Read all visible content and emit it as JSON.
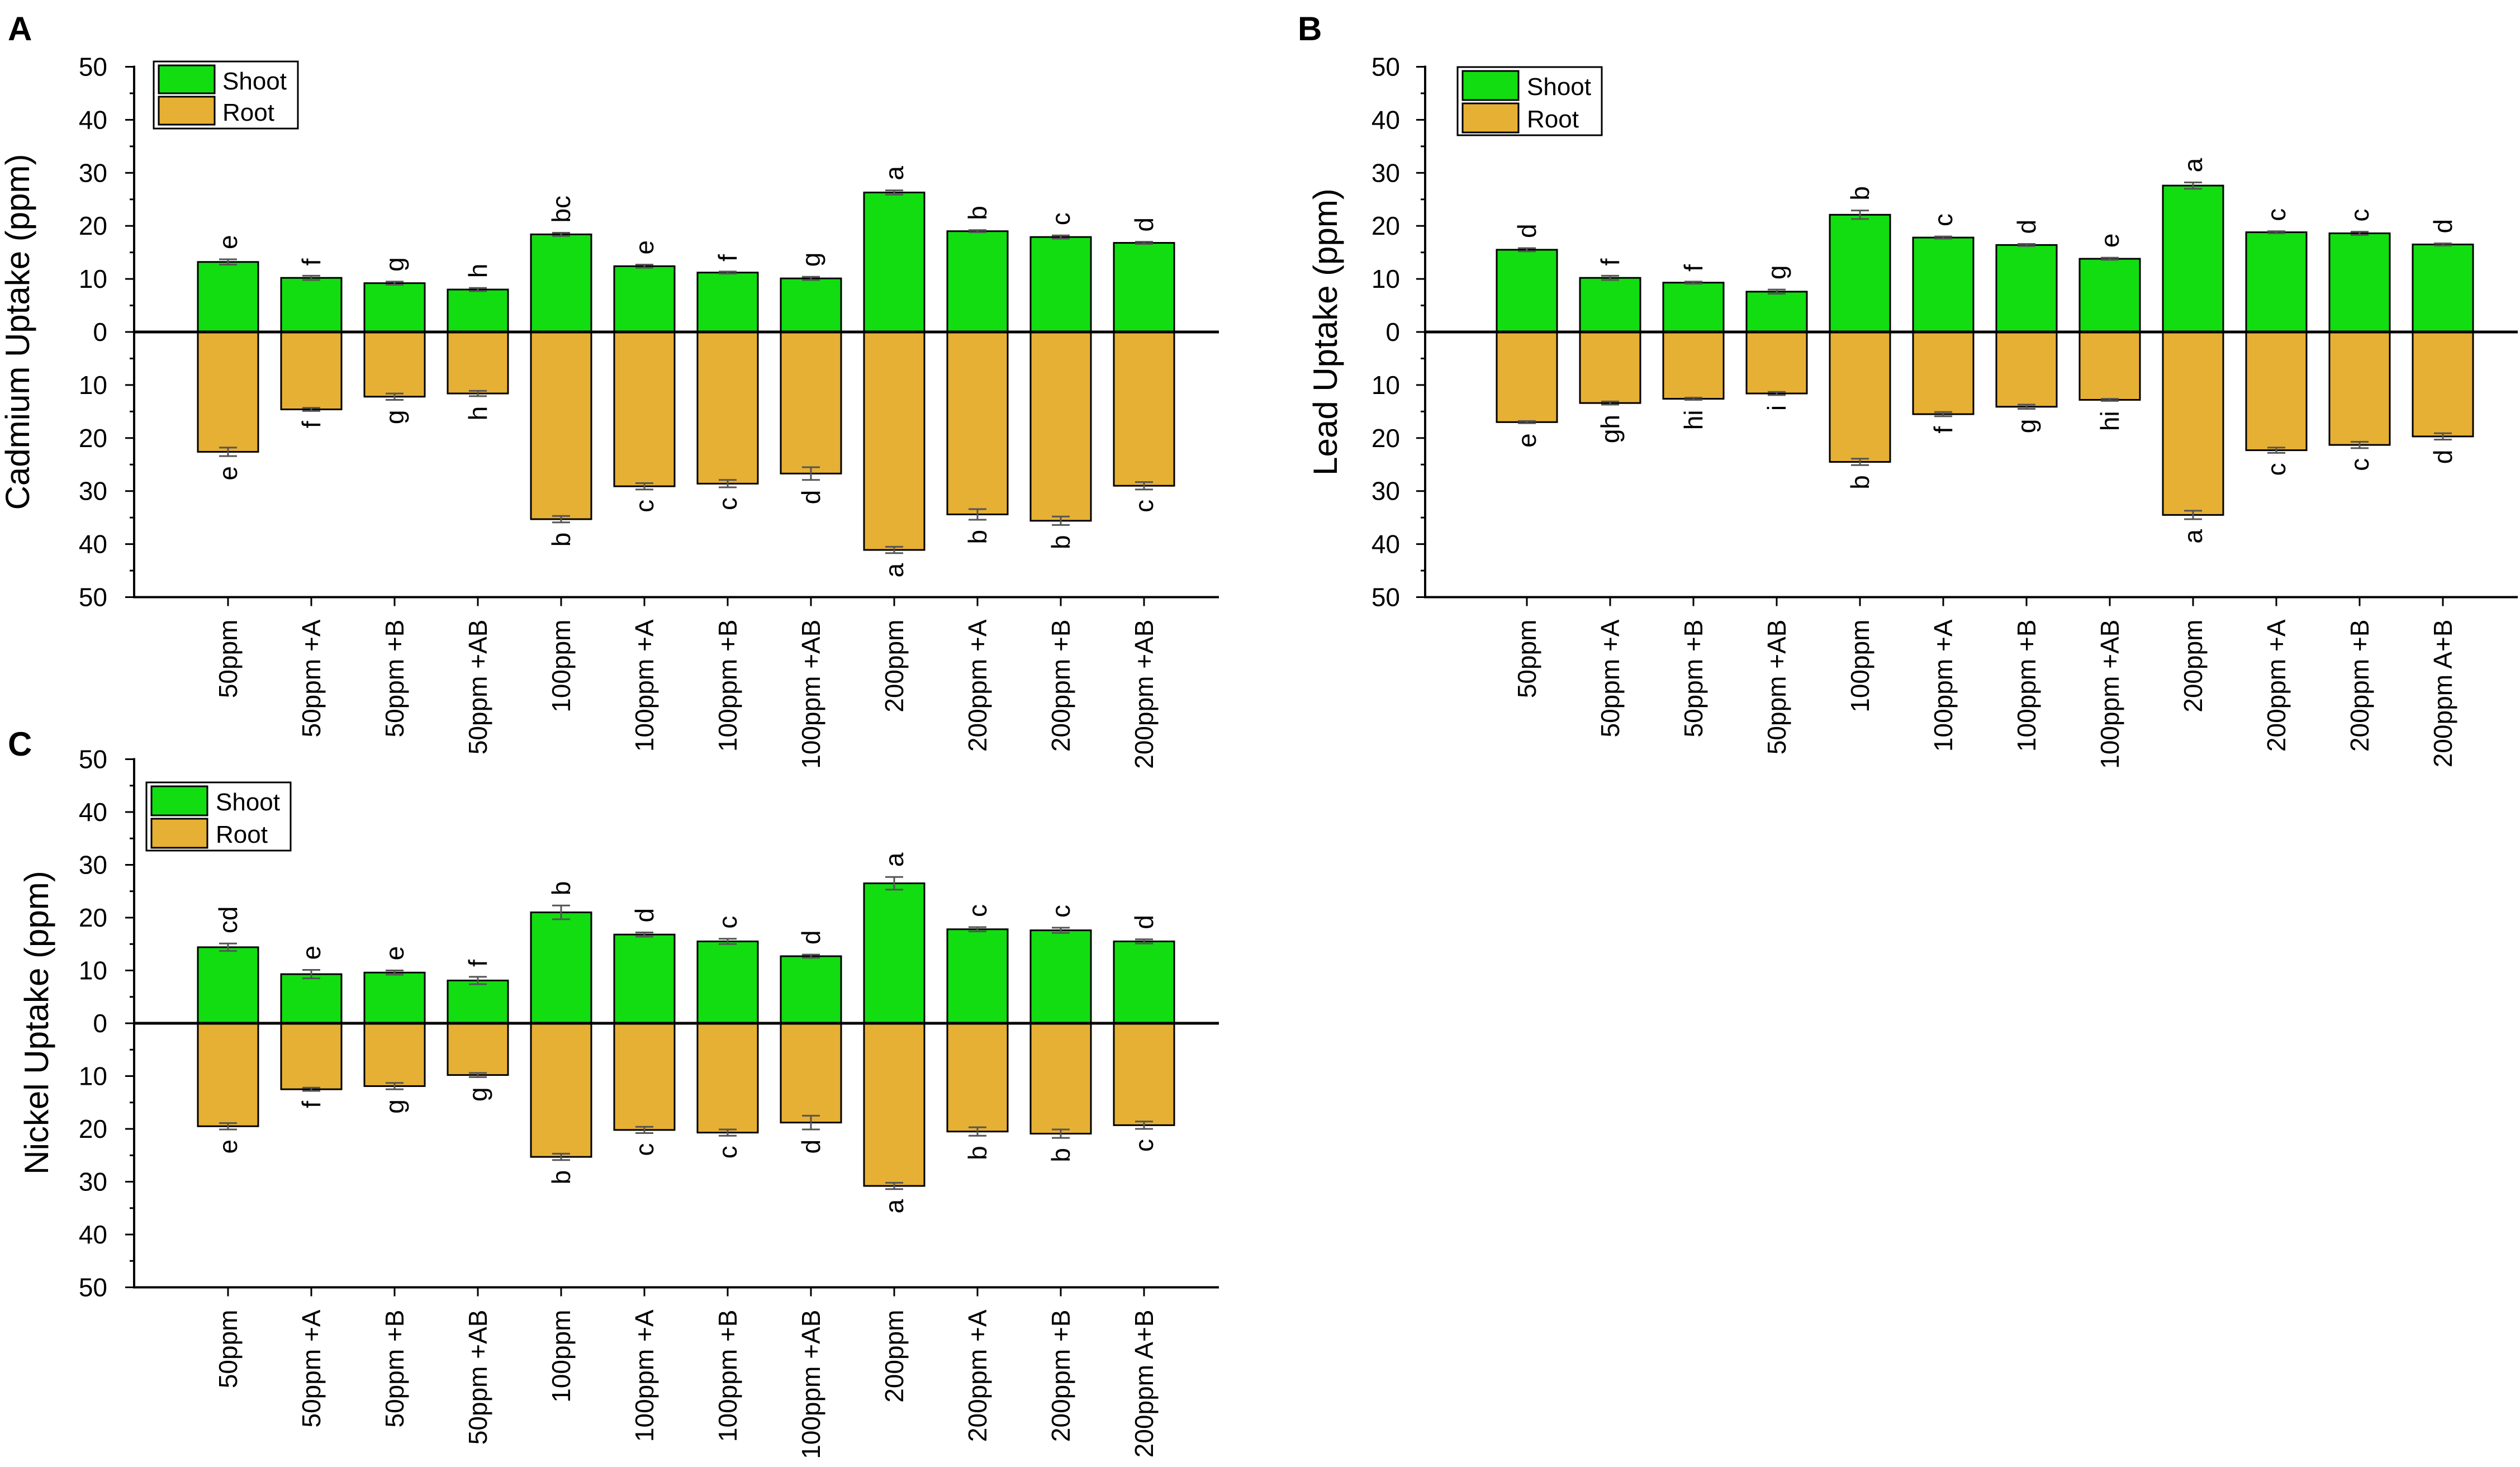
{
  "colors": {
    "shoot": "#11dd11",
    "root": "#e6b034",
    "axis": "#000000",
    "error": "#555555"
  },
  "chart_data": [
    {
      "panel": "A",
      "type": "bar",
      "title": "",
      "ylabel": "Cadmium Uptake (ppm)",
      "xlabel": "",
      "ylim": [
        -50,
        50
      ],
      "ytick_values": [
        50,
        40,
        30,
        20,
        10,
        0,
        -10,
        -20,
        -30,
        -40,
        -50
      ],
      "ytick_labels": [
        "50",
        "40",
        "30",
        "20",
        "10",
        "0",
        "10",
        "20",
        "30",
        "40",
        "50"
      ],
      "legend": [
        "Shoot",
        "Root"
      ],
      "legend_placement": "top-left",
      "categories": [
        "50ppm",
        "50ppm +A",
        "50ppm +B",
        "50ppm +AB",
        "100ppm",
        "100ppm +A",
        "100ppm +B",
        "100ppm +AB",
        "200ppm",
        "200ppm +A",
        "200ppm +B",
        "200ppm +AB"
      ],
      "series": [
        {
          "name": "Shoot",
          "values": [
            13.2,
            10.2,
            9.2,
            8.0,
            18.4,
            12.4,
            11.2,
            10.1,
            26.3,
            19.0,
            17.9,
            16.8
          ],
          "errors": [
            0.5,
            0.4,
            0.3,
            0.3,
            0.3,
            0.3,
            0.2,
            0.3,
            0.4,
            0.2,
            0.3,
            0.2
          ],
          "letters": [
            "e",
            "f",
            "g",
            "h",
            "bc",
            "e",
            "f",
            "g",
            "a",
            "b",
            "c",
            "d"
          ]
        },
        {
          "name": "Root",
          "values": [
            -22.6,
            -14.6,
            -12.2,
            -11.6,
            -35.3,
            -29.1,
            -28.6,
            -26.7,
            -41.1,
            -34.4,
            -35.6,
            -29.0
          ],
          "errors": [
            0.8,
            0.3,
            0.6,
            0.5,
            0.6,
            0.6,
            0.7,
            1.2,
            0.6,
            1.0,
            0.8,
            0.7
          ],
          "letters": [
            "e",
            "f",
            "g",
            "h",
            "b",
            "c",
            "c",
            "d",
            "a",
            "b",
            "b",
            "c"
          ]
        }
      ]
    },
    {
      "panel": "B",
      "type": "bar",
      "title": "",
      "ylabel": "Lead Uptake (ppm)",
      "xlabel": "",
      "ylim": [
        -50,
        50
      ],
      "ytick_values": [
        50,
        40,
        30,
        20,
        10,
        0,
        -10,
        -20,
        -30,
        -40,
        -50
      ],
      "ytick_labels": [
        "50",
        "40",
        "30",
        "20",
        "10",
        "0",
        "10",
        "20",
        "30",
        "40",
        "50"
      ],
      "legend": [
        "Shoot",
        "Root"
      ],
      "legend_placement": "top-left",
      "categories": [
        "50ppm",
        "50ppm +A",
        "50ppm +B",
        "50ppm +AB",
        "100ppm",
        "100ppm +A",
        "100ppm +B",
        "100ppm +AB",
        "200ppm",
        "200ppm +A",
        "200ppm +B",
        "200ppm A+B"
      ],
      "series": [
        {
          "name": "Shoot",
          "values": [
            15.5,
            10.2,
            9.3,
            7.6,
            22.1,
            17.8,
            16.4,
            13.8,
            27.6,
            18.8,
            18.6,
            16.5
          ],
          "errors": [
            0.3,
            0.4,
            0.2,
            0.4,
            0.8,
            0.2,
            0.2,
            0.2,
            0.6,
            0.2,
            0.3,
            0.2
          ],
          "letters": [
            "d",
            "f",
            "f",
            "g",
            "b",
            "c",
            "d",
            "e",
            "a",
            "c",
            "c",
            "d"
          ]
        },
        {
          "name": "Root",
          "values": [
            -17.0,
            -13.4,
            -12.6,
            -11.6,
            -24.5,
            -15.5,
            -14.1,
            -12.8,
            -34.5,
            -22.3,
            -21.3,
            -19.7
          ],
          "errors": [
            0.2,
            0.3,
            0.2,
            0.3,
            0.6,
            0.4,
            0.4,
            0.2,
            0.8,
            0.5,
            0.6,
            0.6
          ],
          "letters": [
            "e",
            "gh",
            "hi",
            "i",
            "b",
            "f",
            "g",
            "hi",
            "a",
            "c",
            "c",
            "d"
          ]
        }
      ]
    },
    {
      "panel": "C",
      "type": "bar",
      "title": "",
      "ylabel": "Nickel Uptake (ppm)",
      "xlabel": "",
      "ylim": [
        -50,
        50
      ],
      "ytick_values": [
        50,
        40,
        30,
        20,
        10,
        0,
        -10,
        -20,
        -30,
        -40,
        -50
      ],
      "ytick_labels": [
        "50",
        "40",
        "30",
        "20",
        "10",
        "0",
        "10",
        "20",
        "30",
        "40",
        "50"
      ],
      "legend": [
        "Shoot",
        "Root"
      ],
      "legend_placement": "top-left",
      "categories": [
        "50ppm",
        "50ppm +A",
        "50ppm +B",
        "50ppm +AB",
        "100ppm",
        "100ppm +A",
        "100ppm +B",
        "100ppm +AB",
        "200ppm",
        "200ppm +A",
        "200ppm +B",
        "200ppm A+B"
      ],
      "series": [
        {
          "name": "Shoot",
          "values": [
            14.4,
            9.3,
            9.6,
            8.1,
            21.0,
            16.8,
            15.5,
            12.7,
            26.5,
            17.8,
            17.6,
            15.5
          ],
          "errors": [
            0.7,
            0.8,
            0.4,
            0.7,
            1.3,
            0.4,
            0.5,
            0.3,
            1.2,
            0.4,
            0.5,
            0.4
          ],
          "letters": [
            "cd",
            "e",
            "e",
            "f",
            "b",
            "d",
            "c",
            "d",
            "a",
            "c",
            "c",
            "d"
          ]
        },
        {
          "name": "Root",
          "values": [
            -19.5,
            -12.5,
            -11.9,
            -9.8,
            -25.3,
            -20.2,
            -20.7,
            -18.8,
            -30.8,
            -20.5,
            -20.9,
            -19.3
          ],
          "errors": [
            0.6,
            0.3,
            0.6,
            0.4,
            0.6,
            0.6,
            0.6,
            1.3,
            0.6,
            0.8,
            0.8,
            0.7
          ],
          "letters": [
            "e",
            "f",
            "g",
            "g",
            "b",
            "c",
            "c",
            "d",
            "a",
            "b",
            "b",
            "c"
          ]
        }
      ]
    }
  ]
}
